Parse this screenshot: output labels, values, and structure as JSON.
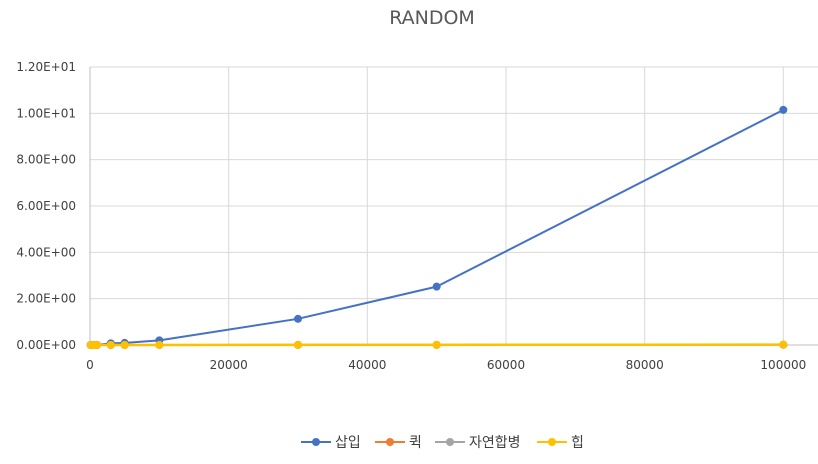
{
  "chart_data": {
    "type": "line",
    "title": "RANDOM",
    "xlabel": "",
    "ylabel": "",
    "xlim": [
      0,
      105000
    ],
    "ylim": [
      0,
      12
    ],
    "x_ticks": [
      0,
      20000,
      40000,
      60000,
      80000,
      100000
    ],
    "x_tick_labels": [
      "0",
      "20000",
      "40000",
      "60000",
      "80000",
      "100000"
    ],
    "y_ticks": [
      0,
      2,
      4,
      6,
      8,
      10,
      12
    ],
    "y_tick_labels": [
      "0.00E+00",
      "2.00E+00",
      "4.00E+00",
      "6.00E+00",
      "8.00E+00",
      "1.00E+01",
      "1.20E+01"
    ],
    "grid": "both",
    "legend_position": "bottom",
    "x": [
      100,
      500,
      1000,
      3000,
      5000,
      10000,
      30000,
      50000,
      100000
    ],
    "series": [
      {
        "name": "삽입",
        "color": "#4472C4",
        "values": [
          0.0001,
          0.002,
          0.008,
          0.07,
          0.09,
          0.2,
          1.13,
          2.52,
          10.15
        ]
      },
      {
        "name": "퀵",
        "color": "#ED7D31",
        "values": [
          0,
          0,
          0,
          0,
          0,
          0.001,
          0.003,
          0.005,
          0.01
        ]
      },
      {
        "name": "자연합병",
        "color": "#A5A5A5",
        "values": [
          0,
          0,
          0,
          0,
          0,
          0.001,
          0.004,
          0.006,
          0.012
        ]
      },
      {
        "name": "힙",
        "color": "#FFC000",
        "values": [
          0,
          0,
          0,
          0,
          0,
          0.002,
          0.005,
          0.008,
          0.015
        ]
      }
    ]
  }
}
